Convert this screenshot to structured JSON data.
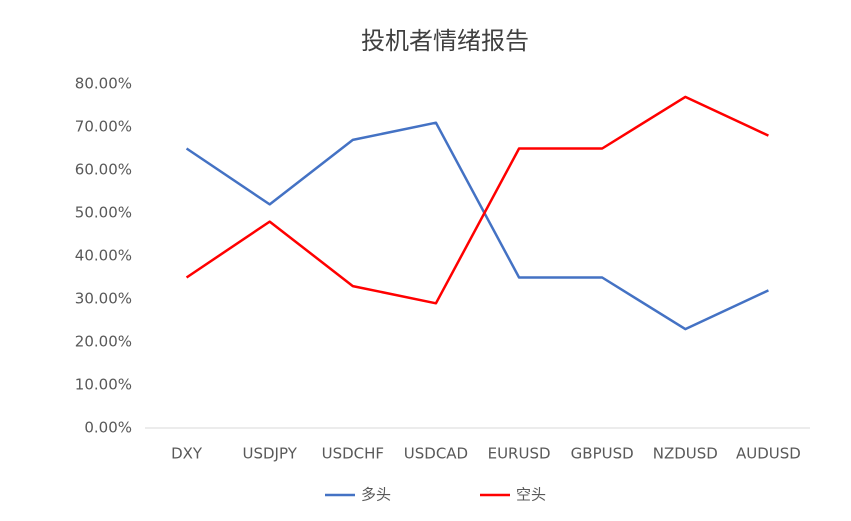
{
  "chart_data": {
    "type": "line",
    "title": "投机者情绪报告",
    "categories": [
      "DXY",
      "USDJPY",
      "USDCHF",
      "USDCAD",
      "EURUSD",
      "GBPUSD",
      "NZDUSD",
      "AUDUSD"
    ],
    "series": [
      {
        "name": "多头",
        "color": "#4472c4",
        "values": [
          65,
          52,
          67,
          71,
          35,
          35,
          23,
          32
        ]
      },
      {
        "name": "空头",
        "color": "#ff0000",
        "values": [
          35,
          48,
          33,
          29,
          65,
          65,
          77,
          68
        ]
      }
    ],
    "ylim": [
      0,
      80
    ],
    "yticks": [
      {
        "value": 0,
        "label": "0.00%"
      },
      {
        "value": 10,
        "label": "10.00%"
      },
      {
        "value": 20,
        "label": "20.00%"
      },
      {
        "value": 30,
        "label": "30.00%"
      },
      {
        "value": 40,
        "label": "40.00%"
      },
      {
        "value": 50,
        "label": "50.00%"
      },
      {
        "value": 60,
        "label": "60.00%"
      },
      {
        "value": 70,
        "label": "70.00%"
      },
      {
        "value": 80,
        "label": "80.00%"
      }
    ],
    "legend": "bottom"
  }
}
